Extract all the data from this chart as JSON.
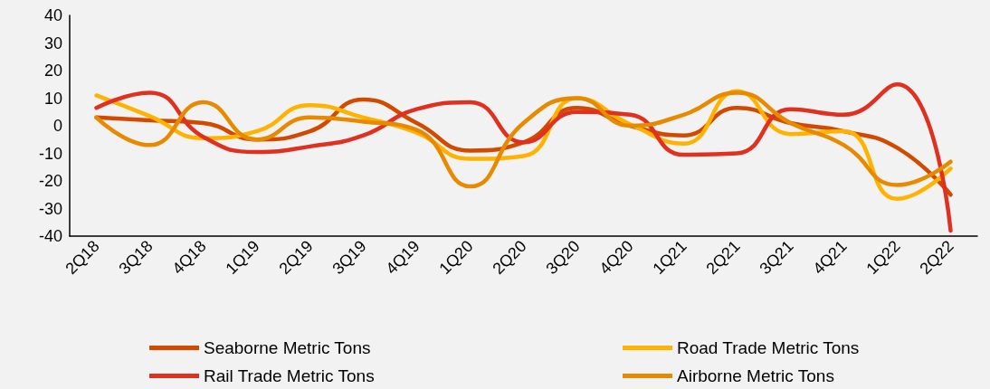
{
  "chart_data": {
    "type": "line",
    "categories": [
      "2Q18",
      "3Q18",
      "4Q18",
      "1Q19",
      "2Q19",
      "3Q19",
      "4Q19",
      "1Q20",
      "2Q20",
      "3Q20",
      "4Q20",
      "1Q21",
      "2Q21",
      "3Q21",
      "4Q21",
      "1Q22",
      "2Q22"
    ],
    "series": [
      {
        "name": "Seaborne Metric Tons",
        "color": "#d24a00",
        "values": [
          3,
          2,
          1,
          -5,
          -2,
          9.5,
          1,
          -9,
          -6,
          6.5,
          0,
          -3.5,
          6.5,
          1,
          -2,
          -8,
          -25
        ]
      },
      {
        "name": "Road Trade Metric Tons",
        "color": "#ffb300",
        "values": [
          11,
          3.5,
          -4.5,
          -2,
          7.5,
          3,
          -2.5,
          -12,
          -11,
          10,
          0.5,
          -6.5,
          12.5,
          -3,
          -2,
          -26.5,
          -15.5
        ]
      },
      {
        "name": "Rail Trade Metric Tons",
        "color": "#e03020",
        "values": [
          6.5,
          12,
          -4,
          -9.5,
          -7.5,
          -3.5,
          6,
          8.5,
          -6,
          5,
          4,
          -10.5,
          -10,
          6,
          4,
          15,
          -38
        ]
      },
      {
        "name": "Airborne Metric Tons",
        "color": "#e88a00",
        "values": [
          3,
          -7,
          8.5,
          -5,
          3,
          1.5,
          -1.5,
          -22,
          1,
          10,
          0,
          4,
          12,
          1,
          -7,
          -21.5,
          -13
        ]
      }
    ],
    "ylim": [
      -40,
      40
    ],
    "yticks": [
      -40,
      -30,
      -20,
      -10,
      0,
      10,
      20,
      30,
      40
    ],
    "grid": false,
    "legend": "bottom",
    "marker": "none",
    "line_style": "solid"
  }
}
